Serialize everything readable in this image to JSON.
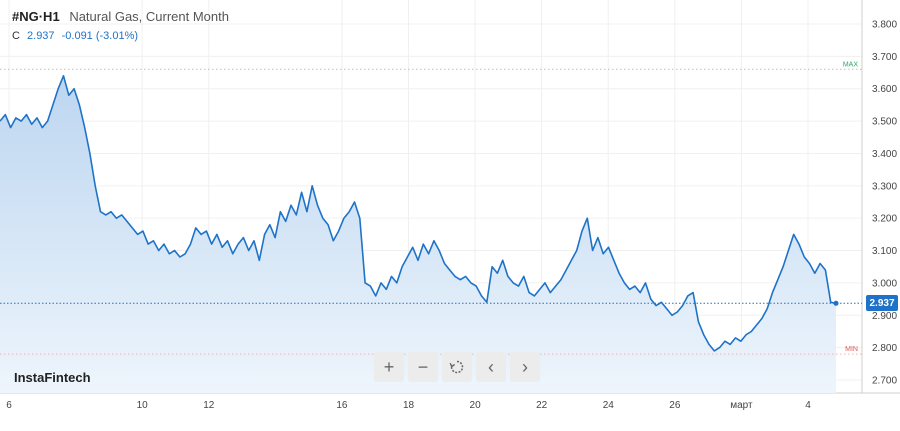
{
  "header": {
    "symbol": "#NG·H1",
    "description": "Natural Gas, Current Month",
    "ohlc_key": "C",
    "close": "2.937",
    "change": "-0.091 (-3.01%)"
  },
  "brand": "InstaFintech",
  "toolbar": {
    "zoom_in": "+",
    "zoom_out": "−",
    "reset_icon": "reset-icon",
    "back": "‹",
    "forward": "›"
  },
  "colors": {
    "line": "#1e73c8",
    "fill_top": "#bcd6f0",
    "fill_bottom": "#eef5fc",
    "max": "#2aa866",
    "min": "#e05656",
    "grid": "#f0f0f0"
  },
  "chart_data": {
    "type": "area",
    "x_ticks": [
      {
        "label": "6",
        "pos": 0
      },
      {
        "label": "10",
        "pos": 26
      },
      {
        "label": "12",
        "pos": 39
      },
      {
        "label": "16",
        "pos": 65
      },
      {
        "label": "18",
        "pos": 78
      },
      {
        "label": "20",
        "pos": 91
      },
      {
        "label": "22",
        "pos": 104
      },
      {
        "label": "24",
        "pos": 117
      },
      {
        "label": "26",
        "pos": 130
      },
      {
        "label": "март",
        "pos": 143
      },
      {
        "label": "4",
        "pos": 156
      }
    ],
    "y_ticks": [
      "3.800",
      "3.700",
      "3.600",
      "3.500",
      "3.400",
      "3.300",
      "3.200",
      "3.100",
      "3.000",
      "2.900",
      "2.800",
      "2.700"
    ],
    "ylim": [
      2.68,
      3.83
    ],
    "max_label": "MAX",
    "max_value": 3.66,
    "min_label": "MIN",
    "min_value": 2.78,
    "last_value": "2.937",
    "series": [
      {
        "values": [
          3.5,
          3.52,
          3.48,
          3.51,
          3.5,
          3.52,
          3.49,
          3.51,
          3.48,
          3.5,
          3.55,
          3.6,
          3.64,
          3.58,
          3.6,
          3.55,
          3.48,
          3.4,
          3.3,
          3.22,
          3.21,
          3.22,
          3.2,
          3.21,
          3.19,
          3.17,
          3.15,
          3.16,
          3.12,
          3.13,
          3.1,
          3.12,
          3.09,
          3.1,
          3.08,
          3.09,
          3.12,
          3.17,
          3.15,
          3.16,
          3.12,
          3.15,
          3.11,
          3.13,
          3.09,
          3.12,
          3.14,
          3.1,
          3.13,
          3.07,
          3.15,
          3.18,
          3.14,
          3.22,
          3.19,
          3.24,
          3.21,
          3.28,
          3.22,
          3.3,
          3.24,
          3.2,
          3.18,
          3.13,
          3.16,
          3.2,
          3.22,
          3.25,
          3.2,
          3.0,
          2.99,
          2.96,
          3.0,
          2.98,
          3.02,
          3.0,
          3.05,
          3.08,
          3.11,
          3.07,
          3.12,
          3.09,
          3.13,
          3.1,
          3.06,
          3.04,
          3.02,
          3.01,
          3.02,
          3.0,
          2.99,
          2.96,
          2.94,
          3.05,
          3.03,
          3.07,
          3.02,
          3.0,
          2.99,
          3.02,
          2.97,
          2.96,
          2.98,
          3.0,
          2.97,
          2.99,
          3.01,
          3.04,
          3.07,
          3.1,
          3.16,
          3.2,
          3.1,
          3.14,
          3.09,
          3.11,
          3.07,
          3.03,
          3.0,
          2.98,
          2.99,
          2.97,
          3.0,
          2.95,
          2.93,
          2.94,
          2.92,
          2.9,
          2.91,
          2.93,
          2.96,
          2.97,
          2.88,
          2.84,
          2.81,
          2.79,
          2.8,
          2.82,
          2.81,
          2.83,
          2.82,
          2.84,
          2.85,
          2.87,
          2.89,
          2.92,
          2.97,
          3.01,
          3.05,
          3.1,
          3.15,
          3.12,
          3.08,
          3.06,
          3.03,
          3.06,
          3.04,
          2.94,
          2.937
        ]
      }
    ]
  }
}
